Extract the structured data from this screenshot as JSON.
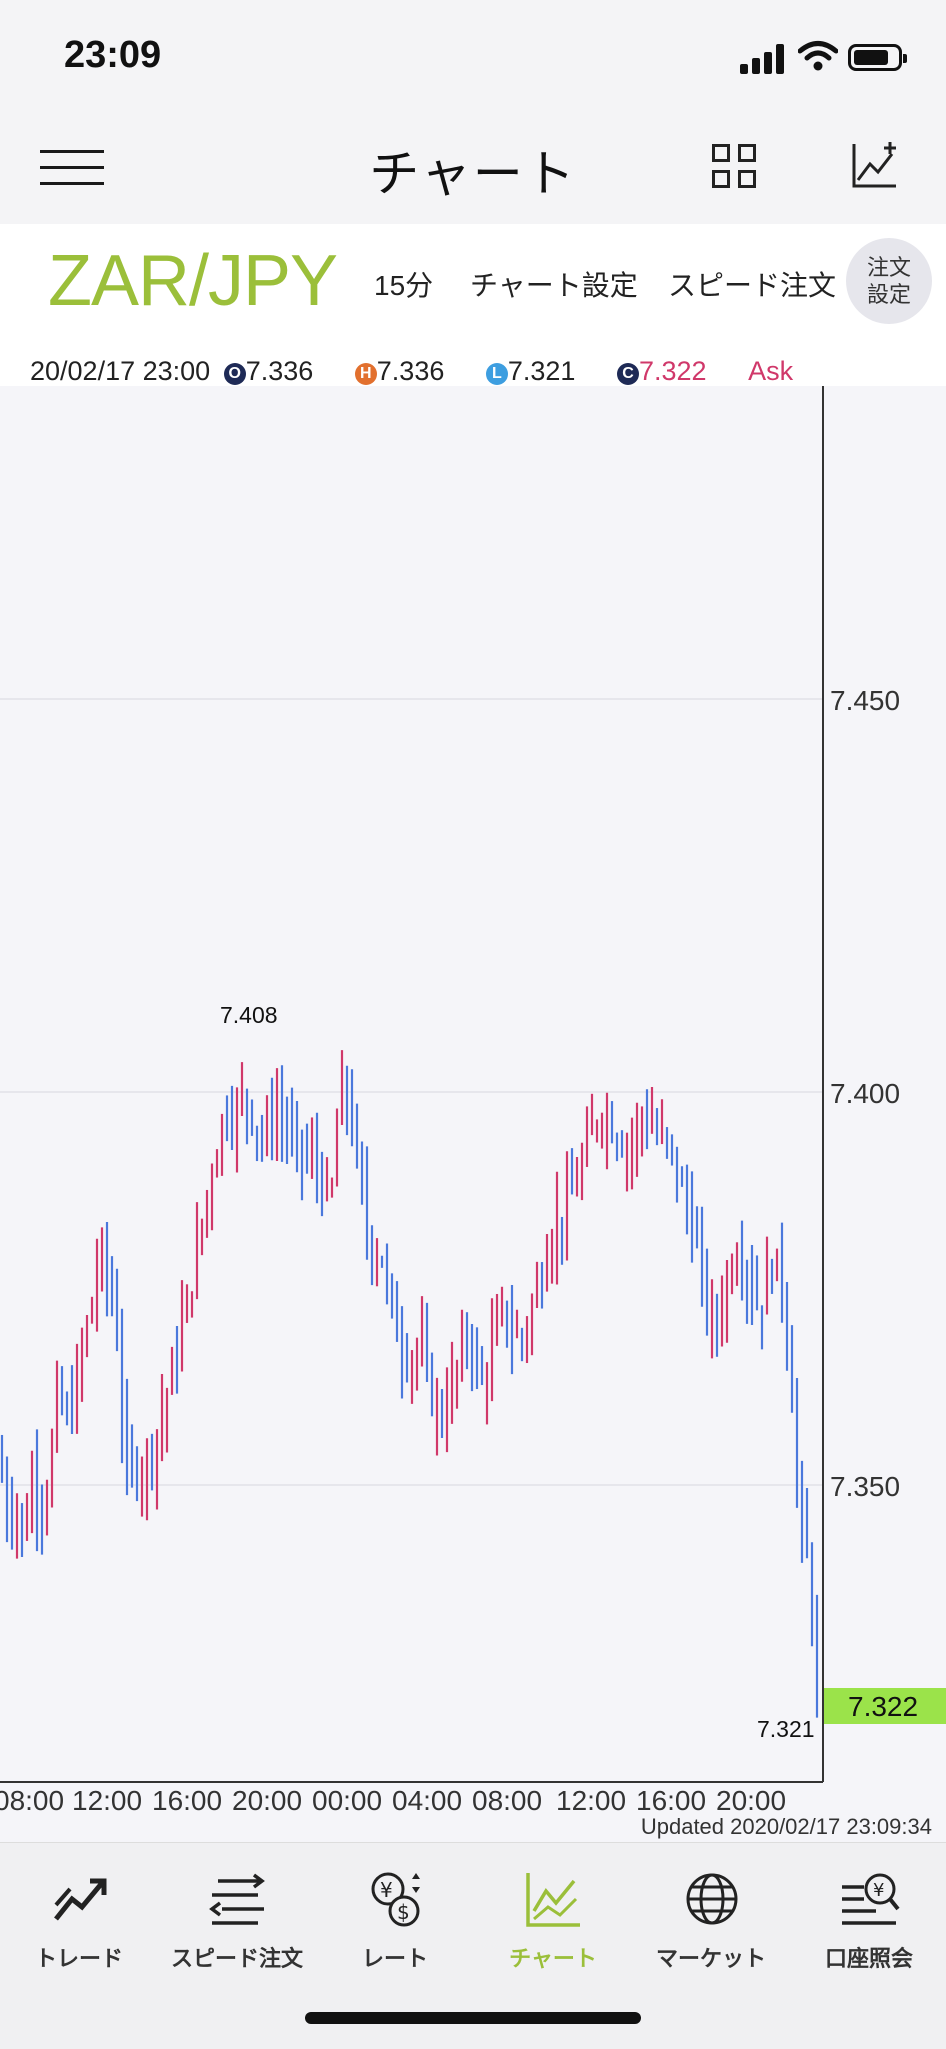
{
  "status_bar": {
    "time": "23:09"
  },
  "header": {
    "title": "チャート"
  },
  "symbol_bar": {
    "pair": "ZAR/JPY",
    "timeframe": "15分",
    "chart_settings": "チャート設定",
    "speed_order": "スピード注文",
    "order_settings_line1": "注文",
    "order_settings_line2": "設定"
  },
  "ohlc": {
    "datetime": "20/02/17 23:00",
    "open_badge": "O",
    "open": "7.336",
    "high_badge": "H",
    "high": "7.336",
    "low_badge": "L",
    "low": "7.321",
    "close_badge": "C",
    "close": "7.322",
    "price_type": "Ask"
  },
  "chart_data": {
    "type": "ohlc-bar",
    "y_ticks": [
      "7.450",
      "7.400",
      "7.350"
    ],
    "x_ticks": [
      "08:00",
      "12:00",
      "16:00",
      "20:00",
      "00:00",
      "04:00",
      "08:00",
      "12:00",
      "16:00",
      "20:00"
    ],
    "high_label": "7.408",
    "low_label": "7.321",
    "current_price": "7.322",
    "colors": {
      "up": "#d0386a",
      "down": "#4a78dc",
      "current": "#9be34a"
    }
  },
  "updated": "Updated  2020/02/17 23:09:34",
  "tabs": [
    {
      "icon": "trade-icon",
      "label": "トレード"
    },
    {
      "icon": "speed-order-icon",
      "label": "スピード注文"
    },
    {
      "icon": "rate-icon",
      "label": "レート"
    },
    {
      "icon": "chart-icon",
      "label": "チャート"
    },
    {
      "icon": "market-icon",
      "label": "マーケット"
    },
    {
      "icon": "account-icon",
      "label": "口座照会"
    }
  ]
}
